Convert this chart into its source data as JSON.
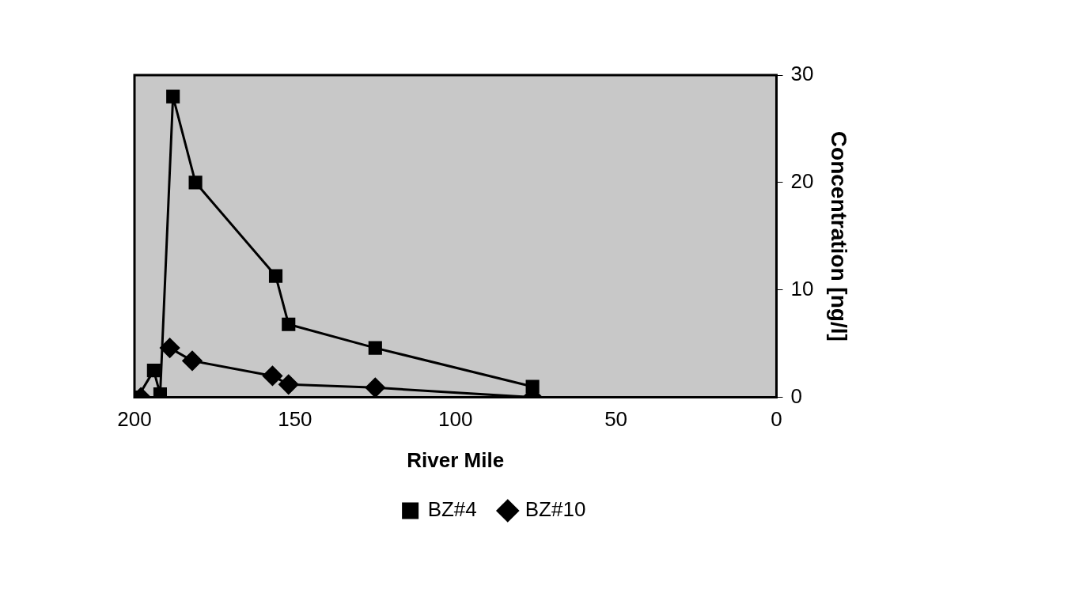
{
  "chart_data": {
    "type": "line",
    "xlabel": "River Mile",
    "ylabel": "Concentration [ng/l]",
    "xlim": [
      200,
      0
    ],
    "xticks": [
      200,
      150,
      100,
      50,
      0
    ],
    "ylim": [
      0,
      30
    ],
    "yticks": [
      0,
      10,
      20,
      30
    ],
    "grid": false,
    "legend": "bottom",
    "series": [
      {
        "name": "BZ#4",
        "color": "#000000",
        "marker": "square",
        "x": [
          199,
          194,
          192,
          188,
          181,
          156,
          152,
          125,
          76
        ],
        "values": [
          0,
          2.5,
          0.3,
          28,
          20,
          11.3,
          6.8,
          4.6,
          1
        ]
      },
      {
        "name": "BZ#10",
        "color": "#000000",
        "marker": "diamond",
        "x": [
          198,
          193,
          189,
          182,
          157,
          152,
          125,
          76
        ],
        "values": [
          0,
          null,
          4.6,
          3.4,
          2,
          1.2,
          0.9,
          0
        ]
      }
    ]
  }
}
